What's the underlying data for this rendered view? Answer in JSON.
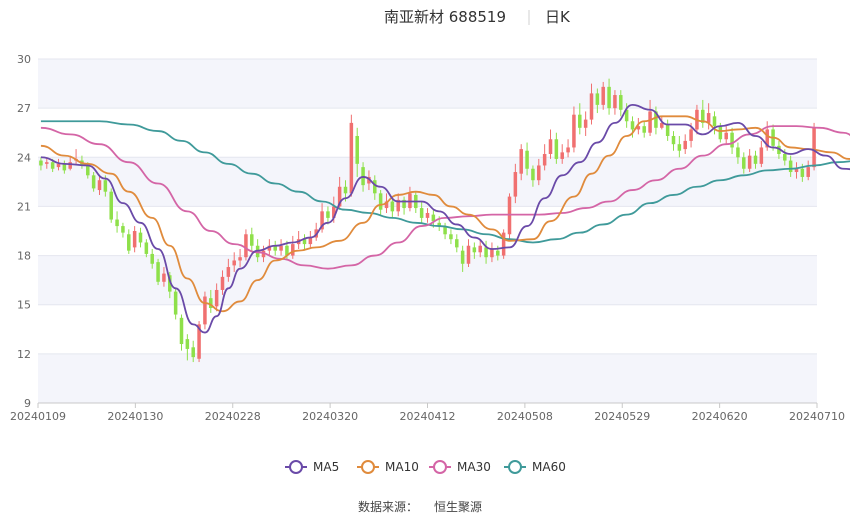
{
  "chart_data": {
    "type": "candlestick",
    "title": "南亚新材 688519",
    "period": "日K",
    "ylim": [
      9,
      30
    ],
    "yticks": [
      9,
      12,
      15,
      18,
      21,
      24,
      27,
      30
    ],
    "xtick_labels": [
      "20240109",
      "20240130",
      "20240228",
      "20240320",
      "20240412",
      "20240508",
      "20240529",
      "20240620",
      "20240710"
    ],
    "legend": [
      {
        "name": "MA5",
        "color": "#6a4aa8"
      },
      {
        "name": "MA10",
        "color": "#e08b3c"
      },
      {
        "name": "MA30",
        "color": "#d465a6"
      },
      {
        "name": "MA60",
        "color": "#3f9a9a"
      }
    ],
    "up_color": "#f07070",
    "down_color": "#8ee04a",
    "candles": [
      [
        23.8,
        23.5,
        24.0,
        23.2
      ],
      [
        23.6,
        23.7,
        24.0,
        23.3
      ],
      [
        23.7,
        23.3,
        23.9,
        23.1
      ],
      [
        23.4,
        23.6,
        23.9,
        23.2
      ],
      [
        23.6,
        23.2,
        23.8,
        23.0
      ],
      [
        23.3,
        23.7,
        24.1,
        23.2
      ],
      [
        23.8,
        23.9,
        24.5,
        23.6
      ],
      [
        23.8,
        23.5,
        24.1,
        23.3
      ],
      [
        23.5,
        22.9,
        23.7,
        22.7
      ],
      [
        22.9,
        22.1,
        23.1,
        21.9
      ],
      [
        22.0,
        22.6,
        22.9,
        21.7
      ],
      [
        22.6,
        21.9,
        22.9,
        21.6
      ],
      [
        21.9,
        20.2,
        22.1,
        20.0
      ],
      [
        20.2,
        19.8,
        20.7,
        19.4
      ],
      [
        19.8,
        19.4,
        20.0,
        19.1
      ],
      [
        19.3,
        18.3,
        19.6,
        18.1
      ],
      [
        18.5,
        19.5,
        19.8,
        18.2
      ],
      [
        19.4,
        18.8,
        19.7,
        18.5
      ],
      [
        18.8,
        18.1,
        19.0,
        17.9
      ],
      [
        18.1,
        17.5,
        18.4,
        17.2
      ],
      [
        17.6,
        16.4,
        17.8,
        16.2
      ],
      [
        16.4,
        16.9,
        17.3,
        16.1
      ],
      [
        16.8,
        15.8,
        17.0,
        15.4
      ],
      [
        15.8,
        14.4,
        16.0,
        14.1
      ],
      [
        14.2,
        12.6,
        14.4,
        12.2
      ],
      [
        12.9,
        12.3,
        13.2,
        11.6
      ],
      [
        12.4,
        11.8,
        12.8,
        11.5
      ],
      [
        11.7,
        13.8,
        14.0,
        11.5
      ],
      [
        13.8,
        15.5,
        15.8,
        13.5
      ],
      [
        15.4,
        14.8,
        15.9,
        14.5
      ],
      [
        14.9,
        15.9,
        16.3,
        14.6
      ],
      [
        15.9,
        16.7,
        17.1,
        15.6
      ],
      [
        16.7,
        17.3,
        17.8,
        16.4
      ],
      [
        17.4,
        17.7,
        18.2,
        17.0
      ],
      [
        17.7,
        17.9,
        18.4,
        17.3
      ],
      [
        17.9,
        19.3,
        19.6,
        17.7
      ],
      [
        19.3,
        18.6,
        19.7,
        18.2
      ],
      [
        18.6,
        17.9,
        19.0,
        17.6
      ],
      [
        17.9,
        18.3,
        18.6,
        17.6
      ],
      [
        18.3,
        18.6,
        19.0,
        18.0
      ],
      [
        18.6,
        18.3,
        18.9,
        18.0
      ],
      [
        18.3,
        18.6,
        19.0,
        18.0
      ],
      [
        18.6,
        18.0,
        18.9,
        17.8
      ],
      [
        18.0,
        18.7,
        19.2,
        17.8
      ],
      [
        18.7,
        19.0,
        19.5,
        18.4
      ],
      [
        19.0,
        18.7,
        19.3,
        18.3
      ],
      [
        18.7,
        19.1,
        19.5,
        18.4
      ],
      [
        19.1,
        19.6,
        20.0,
        18.9
      ],
      [
        19.6,
        20.7,
        21.2,
        19.4
      ],
      [
        20.7,
        20.3,
        21.0,
        19.9
      ],
      [
        20.3,
        21.0,
        21.6,
        20.0
      ],
      [
        21.0,
        22.2,
        22.8,
        20.8
      ],
      [
        22.2,
        21.8,
        22.6,
        21.3
      ],
      [
        21.8,
        26.1,
        26.6,
        21.6
      ],
      [
        25.3,
        23.6,
        25.8,
        22.8
      ],
      [
        23.4,
        22.3,
        23.7,
        21.9
      ],
      [
        22.4,
        22.8,
        23.2,
        22.0
      ],
      [
        22.6,
        21.8,
        22.9,
        21.4
      ],
      [
        21.8,
        20.8,
        22.0,
        20.5
      ],
      [
        20.9,
        21.3,
        21.8,
        20.6
      ],
      [
        21.3,
        20.7,
        21.6,
        20.3
      ],
      [
        20.7,
        21.4,
        21.8,
        20.4
      ],
      [
        21.4,
        20.9,
        21.6,
        20.5
      ],
      [
        20.9,
        21.8,
        22.2,
        20.7
      ],
      [
        21.7,
        20.9,
        21.9,
        20.6
      ],
      [
        20.9,
        20.3,
        21.3,
        20.0
      ],
      [
        20.3,
        20.6,
        20.9,
        20.0
      ],
      [
        20.5,
        20.1,
        20.8,
        19.7
      ],
      [
        20.0,
        19.8,
        20.4,
        19.5
      ],
      [
        19.8,
        19.3,
        20.0,
        19.0
      ],
      [
        19.3,
        19.0,
        19.6,
        18.7
      ],
      [
        19.0,
        18.5,
        19.3,
        18.2
      ],
      [
        18.3,
        17.5,
        18.6,
        17.0
      ],
      [
        17.5,
        18.6,
        19.0,
        17.3
      ],
      [
        18.5,
        18.2,
        18.8,
        17.8
      ],
      [
        18.2,
        18.6,
        19.0,
        17.9
      ],
      [
        18.5,
        17.9,
        18.9,
        17.5
      ],
      [
        17.9,
        18.4,
        18.8,
        17.6
      ],
      [
        18.3,
        18.0,
        18.6,
        17.7
      ],
      [
        18.0,
        19.4,
        19.6,
        17.8
      ],
      [
        19.3,
        21.6,
        21.8,
        19.0
      ],
      [
        21.6,
        23.1,
        23.6,
        21.2
      ],
      [
        23.0,
        24.5,
        24.8,
        22.6
      ],
      [
        24.4,
        23.3,
        24.9,
        22.9
      ],
      [
        23.3,
        22.6,
        23.5,
        22.2
      ],
      [
        22.6,
        23.5,
        23.9,
        22.3
      ],
      [
        23.5,
        24.2,
        24.8,
        23.2
      ],
      [
        24.2,
        25.1,
        25.7,
        23.9
      ],
      [
        25.1,
        23.9,
        25.5,
        23.6
      ],
      [
        23.9,
        24.3,
        24.8,
        23.6
      ],
      [
        24.3,
        24.6,
        25.1,
        24.0
      ],
      [
        24.6,
        26.6,
        27.1,
        24.3
      ],
      [
        26.6,
        25.8,
        27.3,
        25.4
      ],
      [
        25.8,
        26.3,
        26.8,
        25.3
      ],
      [
        26.3,
        27.9,
        28.5,
        26.0
      ],
      [
        27.9,
        27.2,
        28.2,
        26.7
      ],
      [
        27.2,
        28.3,
        28.6,
        26.9
      ],
      [
        28.3,
        27.0,
        28.8,
        26.6
      ],
      [
        27.0,
        27.8,
        28.1,
        26.6
      ],
      [
        27.8,
        26.9,
        28.1,
        26.5
      ],
      [
        26.9,
        26.2,
        27.3,
        25.8
      ],
      [
        26.2,
        25.7,
        26.5,
        25.2
      ],
      [
        25.7,
        25.9,
        26.4,
        25.4
      ],
      [
        25.9,
        25.5,
        26.2,
        25.2
      ],
      [
        25.5,
        26.8,
        27.5,
        25.3
      ],
      [
        26.8,
        25.8,
        27.1,
        25.4
      ],
      [
        25.8,
        26.1,
        26.5,
        25.7
      ],
      [
        26.0,
        25.3,
        26.3,
        25.0
      ],
      [
        25.3,
        24.8,
        25.6,
        24.4
      ],
      [
        24.8,
        24.4,
        25.3,
        24.0
      ],
      [
        24.5,
        25.0,
        25.4,
        24.2
      ],
      [
        25.0,
        25.7,
        26.1,
        24.6
      ],
      [
        25.7,
        26.9,
        27.2,
        25.4
      ],
      [
        26.9,
        26.1,
        27.5,
        25.8
      ],
      [
        26.1,
        26.7,
        27.3,
        25.7
      ],
      [
        26.5,
        25.9,
        26.8,
        25.4
      ],
      [
        25.9,
        25.1,
        26.1,
        24.9
      ],
      [
        25.1,
        25.5,
        25.9,
        24.8
      ],
      [
        25.5,
        24.6,
        25.8,
        24.2
      ],
      [
        24.6,
        24.0,
        24.9,
        23.6
      ],
      [
        24.0,
        23.3,
        24.3,
        23.0
      ],
      [
        23.3,
        24.1,
        24.5,
        23.1
      ],
      [
        24.1,
        23.6,
        24.4,
        23.3
      ],
      [
        23.6,
        24.6,
        25.0,
        23.4
      ],
      [
        24.6,
        25.7,
        26.2,
        24.4
      ],
      [
        25.7,
        24.7,
        26.0,
        24.4
      ],
      [
        24.7,
        24.2,
        25.0,
        23.9
      ],
      [
        24.2,
        23.8,
        24.5,
        23.5
      ],
      [
        23.8,
        23.1,
        24.1,
        22.8
      ],
      [
        23.1,
        23.3,
        23.7,
        22.7
      ],
      [
        23.3,
        22.8,
        23.6,
        22.5
      ],
      [
        22.8,
        23.4,
        23.8,
        22.6
      ],
      [
        23.4,
        25.8,
        26.1,
        23.2
      ]
    ],
    "ma5": [
      [
        0,
        24.0
      ],
      [
        4,
        23.6
      ],
      [
        8,
        23.5
      ],
      [
        11,
        22.7
      ],
      [
        14,
        21.2
      ],
      [
        17,
        20.0
      ],
      [
        20,
        18.4
      ],
      [
        23,
        16.0
      ],
      [
        26,
        13.8
      ],
      [
        28,
        13.3
      ],
      [
        30,
        14.3
      ],
      [
        32,
        16.0
      ],
      [
        34,
        17.2
      ],
      [
        37,
        18.3
      ],
      [
        40,
        18.6
      ],
      [
        43,
        18.8
      ],
      [
        46,
        19.1
      ],
      [
        49,
        20.0
      ],
      [
        52,
        21.5
      ],
      [
        55,
        22.8
      ],
      [
        58,
        22.2
      ],
      [
        61,
        21.3
      ],
      [
        65,
        21.3
      ],
      [
        68,
        20.7
      ],
      [
        71,
        19.9
      ],
      [
        74,
        19.1
      ],
      [
        77,
        18.4
      ],
      [
        80,
        18.5
      ],
      [
        83,
        19.8
      ],
      [
        86,
        21.5
      ],
      [
        89,
        22.9
      ],
      [
        92,
        23.7
      ],
      [
        95,
        24.9
      ],
      [
        98,
        26.1
      ],
      [
        101,
        27.2
      ],
      [
        104,
        26.9
      ],
      [
        107,
        26.0
      ],
      [
        110,
        26.0
      ],
      [
        113,
        25.4
      ],
      [
        116,
        25.9
      ],
      [
        119,
        26.1
      ],
      [
        122,
        25.3
      ],
      [
        125,
        24.6
      ],
      [
        128,
        24.2
      ],
      [
        131,
        24.5
      ],
      [
        134,
        24.1
      ],
      [
        137,
        23.3
      ],
      [
        140,
        23.2
      ],
      [
        142,
        23.6
      ]
    ],
    "ma10": [
      [
        0,
        24.7
      ],
      [
        4,
        24.1
      ],
      [
        8,
        23.6
      ],
      [
        12,
        23.0
      ],
      [
        15,
        21.9
      ],
      [
        19,
        20.3
      ],
      [
        22,
        18.6
      ],
      [
        25,
        16.6
      ],
      [
        28,
        15.1
      ],
      [
        31,
        14.6
      ],
      [
        34,
        15.2
      ],
      [
        37,
        16.5
      ],
      [
        40,
        17.7
      ],
      [
        44,
        18.3
      ],
      [
        47,
        18.5
      ],
      [
        51,
        18.9
      ],
      [
        55,
        20.0
      ],
      [
        58,
        21.1
      ],
      [
        61,
        21.7
      ],
      [
        64,
        21.9
      ],
      [
        67,
        21.7
      ],
      [
        70,
        21.0
      ],
      [
        73,
        20.5
      ],
      [
        77,
        19.6
      ],
      [
        80,
        18.9
      ],
      [
        84,
        19.0
      ],
      [
        87,
        20.1
      ],
      [
        91,
        21.6
      ],
      [
        94,
        23.0
      ],
      [
        97,
        24.1
      ],
      [
        100,
        25.3
      ],
      [
        103,
        26.2
      ],
      [
        106,
        26.5
      ],
      [
        110,
        26.5
      ],
      [
        113,
        26.2
      ],
      [
        116,
        25.6
      ],
      [
        119,
        25.7
      ],
      [
        122,
        25.8
      ],
      [
        125,
        25.2
      ],
      [
        128,
        24.6
      ],
      [
        131,
        24.5
      ],
      [
        135,
        24.3
      ],
      [
        138,
        23.9
      ],
      [
        142,
        23.8
      ]
    ],
    "ma30": [
      [
        0,
        25.8
      ],
      [
        5,
        25.4
      ],
      [
        10,
        24.8
      ],
      [
        15,
        23.7
      ],
      [
        20,
        22.4
      ],
      [
        25,
        20.7
      ],
      [
        29,
        19.5
      ],
      [
        33,
        18.7
      ],
      [
        37,
        18.2
      ],
      [
        41,
        17.8
      ],
      [
        45,
        17.4
      ],
      [
        49,
        17.2
      ],
      [
        53,
        17.4
      ],
      [
        57,
        18.0
      ],
      [
        61,
        18.8
      ],
      [
        65,
        19.8
      ],
      [
        69,
        20.3
      ],
      [
        73,
        20.4
      ],
      [
        77,
        20.5
      ],
      [
        81,
        20.5
      ],
      [
        85,
        20.5
      ],
      [
        89,
        20.6
      ],
      [
        93,
        20.9
      ],
      [
        97,
        21.3
      ],
      [
        101,
        22.0
      ],
      [
        105,
        22.6
      ],
      [
        109,
        23.3
      ],
      [
        113,
        24.1
      ],
      [
        117,
        24.8
      ],
      [
        121,
        25.4
      ],
      [
        125,
        25.9
      ],
      [
        129,
        25.9
      ],
      [
        133,
        25.8
      ],
      [
        137,
        25.5
      ],
      [
        140,
        25.0
      ],
      [
        142,
        24.9
      ]
    ],
    "ma60": [
      [
        0,
        26.2
      ],
      [
        5,
        26.2
      ],
      [
        10,
        26.2
      ],
      [
        15,
        26.0
      ],
      [
        20,
        25.6
      ],
      [
        24,
        25.0
      ],
      [
        28,
        24.3
      ],
      [
        32,
        23.6
      ],
      [
        36,
        23.0
      ],
      [
        40,
        22.4
      ],
      [
        44,
        21.9
      ],
      [
        48,
        21.3
      ],
      [
        52,
        20.8
      ],
      [
        56,
        20.6
      ],
      [
        60,
        20.3
      ],
      [
        64,
        20.0
      ],
      [
        68,
        19.8
      ],
      [
        72,
        19.6
      ],
      [
        76,
        19.3
      ],
      [
        80,
        19.0
      ],
      [
        84,
        18.8
      ],
      [
        88,
        19.0
      ],
      [
        92,
        19.4
      ],
      [
        96,
        19.9
      ],
      [
        100,
        20.5
      ],
      [
        104,
        21.2
      ],
      [
        108,
        21.7
      ],
      [
        112,
        22.2
      ],
      [
        116,
        22.6
      ],
      [
        120,
        22.9
      ],
      [
        124,
        23.2
      ],
      [
        128,
        23.3
      ],
      [
        132,
        23.5
      ],
      [
        136,
        23.7
      ],
      [
        140,
        23.8
      ],
      [
        142,
        23.9
      ]
    ]
  },
  "source_label": "数据来源：",
  "source_value": "恒生聚源"
}
